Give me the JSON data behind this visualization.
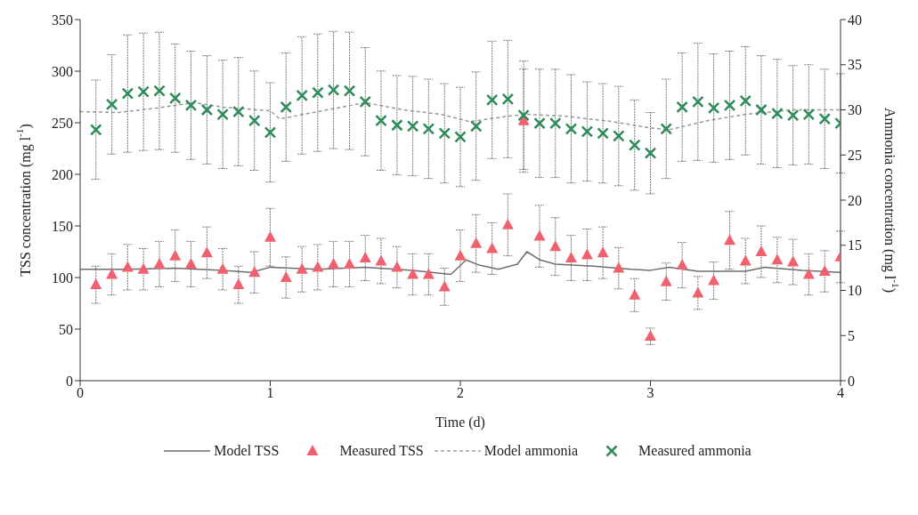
{
  "chart_data": {
    "type": "scatter",
    "xlabel": "Time (d)",
    "ylabel": "TSS concentration (mg l$^{-1}$)",
    "y2label": "Ammonia concentration (mg l$^{-1}$)",
    "xlim": [
      0,
      4
    ],
    "xticks": [
      0,
      1,
      2,
      3,
      4
    ],
    "ylim": [
      0,
      350
    ],
    "yticks": [
      0,
      50,
      100,
      150,
      200,
      250,
      300,
      350
    ],
    "y2lim": [
      0,
      40
    ],
    "y2ticks": [
      0,
      5,
      10,
      15,
      20,
      25,
      30,
      35,
      40
    ],
    "grid": false,
    "legend": "bottom",
    "series": [
      {
        "name": "Model TSS",
        "type": "line",
        "color": "#6e6e6e",
        "line_style": "solid",
        "marker": "none",
        "x": [
          0,
          0.25,
          0.5,
          0.75,
          0.9,
          1.0,
          1.25,
          1.5,
          1.75,
          1.95,
          2.03,
          2.1,
          2.2,
          2.3,
          2.35,
          2.42,
          2.5,
          2.7,
          2.9,
          3.0,
          3.1,
          3.25,
          3.5,
          3.6,
          3.8,
          4.0
        ],
        "values": [
          108,
          108,
          109,
          107,
          105,
          110,
          108,
          110,
          107,
          103,
          117,
          112,
          108,
          113,
          125,
          117,
          113,
          111,
          108,
          107,
          110,
          106,
          106,
          110,
          107,
          105
        ]
      },
      {
        "name": "Measured TSS",
        "color": "#f0606e",
        "marker": "triangle",
        "x": [
          0.083,
          0.167,
          0.25,
          0.333,
          0.417,
          0.5,
          0.583,
          0.667,
          0.75,
          0.833,
          0.917,
          1.0,
          1.083,
          1.167,
          1.25,
          1.333,
          1.417,
          1.5,
          1.583,
          1.667,
          1.75,
          1.833,
          1.917,
          2.0,
          2.083,
          2.167,
          2.25,
          2.333,
          2.417,
          2.5,
          2.583,
          2.667,
          2.75,
          2.833,
          2.917,
          3.0,
          3.083,
          3.167,
          3.25,
          3.333,
          3.417,
          3.5,
          3.583,
          3.667,
          3.75,
          3.833,
          3.917,
          4.0
        ],
        "values": [
          93,
          103,
          110,
          108,
          113,
          121,
          113,
          124,
          108,
          93,
          105,
          139,
          100,
          108,
          110,
          113,
          113,
          119,
          116,
          110,
          103,
          103,
          91,
          121,
          133,
          128,
          151,
          252,
          140,
          130,
          119,
          122,
          124,
          109,
          83,
          43,
          96,
          112,
          85,
          97,
          136,
          116,
          125,
          117,
          115,
          103,
          106,
          120
        ],
        "errors": [
          18,
          20,
          22,
          20,
          22,
          25,
          22,
          25,
          20,
          18,
          20,
          28,
          20,
          22,
          22,
          22,
          22,
          22,
          22,
          20,
          20,
          20,
          18,
          25,
          28,
          25,
          30,
          50,
          30,
          28,
          22,
          25,
          25,
          20,
          16,
          8,
          18,
          22,
          16,
          18,
          28,
          22,
          25,
          22,
          22,
          20,
          20,
          25
        ]
      },
      {
        "name": "Model ammonia",
        "type": "line",
        "axis": "y2",
        "color": "#9a9a9a",
        "line_style": "dashed",
        "marker": "none",
        "x": [
          0,
          0.2,
          0.4,
          0.6,
          0.75,
          1.0,
          1.05,
          1.25,
          1.5,
          1.7,
          1.9,
          2.05,
          2.25,
          2.35,
          2.55,
          2.8,
          3.0,
          3.1,
          3.3,
          3.5,
          3.75,
          4.0
        ],
        "values": [
          29.8,
          29.7,
          30.2,
          30.8,
          30.3,
          29.9,
          29.0,
          29.8,
          30.8,
          30.0,
          29.5,
          28.7,
          29.3,
          29.5,
          29.3,
          28.7,
          28.0,
          27.8,
          28.8,
          29.5,
          30.0,
          30.0
        ]
      },
      {
        "name": "Measured ammonia",
        "axis": "y2",
        "color": "#2e8b5a",
        "marker": "cross",
        "x": [
          0.083,
          0.167,
          0.25,
          0.333,
          0.417,
          0.5,
          0.583,
          0.667,
          0.75,
          0.833,
          0.917,
          1.0,
          1.083,
          1.167,
          1.25,
          1.333,
          1.417,
          1.5,
          1.583,
          1.667,
          1.75,
          1.833,
          1.917,
          2.0,
          2.083,
          2.167,
          2.25,
          2.333,
          2.417,
          2.5,
          2.583,
          2.667,
          2.75,
          2.833,
          2.917,
          3.0,
          3.083,
          3.167,
          3.25,
          3.333,
          3.417,
          3.5,
          3.583,
          3.667,
          3.75,
          3.833,
          3.917,
          4.0
        ],
        "values": [
          27.8,
          30.6,
          31.8,
          32.0,
          32.1,
          31.3,
          30.5,
          30.0,
          29.5,
          29.8,
          28.8,
          27.5,
          30.3,
          31.6,
          31.9,
          32.2,
          32.1,
          30.9,
          28.8,
          28.3,
          28.2,
          27.9,
          27.4,
          27.0,
          28.2,
          31.1,
          31.2,
          29.4,
          28.5,
          28.5,
          27.9,
          27.6,
          27.4,
          27.1,
          26.1,
          25.2,
          27.9,
          30.3,
          30.9,
          30.2,
          30.5,
          31.0,
          30.0,
          29.6,
          29.4,
          29.5,
          29.0,
          28.5
        ],
        "errors": [
          5.5,
          5.5,
          6.5,
          6.5,
          6.5,
          6,
          6,
          6,
          6,
          6,
          5.5,
          5.5,
          6,
          6.5,
          6.5,
          6.5,
          6.5,
          6,
          5.5,
          5.5,
          5.5,
          5.5,
          5.5,
          5.5,
          6,
          6.5,
          6.5,
          6,
          6,
          6,
          6,
          5.5,
          5.5,
          5.5,
          5,
          4.5,
          5.5,
          6,
          6.5,
          6,
          6,
          6,
          6,
          6,
          5.5,
          5.5,
          5.5,
          5.5
        ]
      }
    ]
  }
}
